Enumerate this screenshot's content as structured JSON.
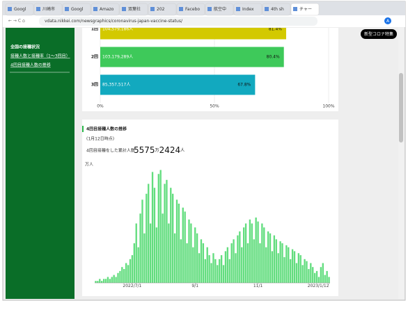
{
  "browser": {
    "tabs": [
      "Googl",
      "川崎市",
      "Googl",
      "Amazo",
      "双葉社",
      "202",
      "Facebo",
      "航空中",
      "Index",
      "4th sh",
      "チャー"
    ],
    "url": "vdata.nikkei.com/newsgraphics/coronavirus-japan-vaccine-status/",
    "profile": "A"
  },
  "sidebar": {
    "title": "全国の接種状況",
    "links": [
      "接種人数と接種率（1〜3回目）",
      "4回目接種人数の推移"
    ]
  },
  "header_button": "新型コロナ特集",
  "section": {
    "title": "4回目接種人数の推移",
    "as_of": "(1月12日時点)",
    "total_caption": "4回目接種をした累計人数",
    "total_parts": [
      "5575",
      "万",
      "2424",
      "人"
    ]
  },
  "chart_data": [
    {
      "type": "barh",
      "categories": [
        "1回",
        "2回",
        "3回"
      ],
      "values": [
        81.4,
        80.4,
        67.8
      ],
      "value_labels": [
        "81.4%",
        "80.4%",
        "67.8%"
      ],
      "count_labels": [
        "104,579,186人",
        "103,179,289人",
        "85,357,517人"
      ],
      "colors": [
        "#d3c900",
        "#3ec95a",
        "#12a9bf"
      ],
      "xlim": [
        0,
        100
      ],
      "xticks": [
        {
          "value": 0,
          "label": "0%"
        },
        {
          "value": 50,
          "label": "50%"
        },
        {
          "value": 100,
          "label": "100%"
        }
      ],
      "grid": true
    },
    {
      "type": "bar",
      "unit_label": "万人",
      "color": "#62dd7e",
      "ylim": [
        0,
        60
      ],
      "categories": [
        null,
        null,
        null,
        null,
        null,
        null,
        null,
        null,
        null,
        null,
        null,
        null,
        null,
        null,
        null,
        null,
        null,
        null,
        "2022/7/1",
        null,
        null,
        null,
        null,
        null,
        null,
        null,
        null,
        null,
        null,
        null,
        null,
        null,
        null,
        null,
        null,
        null,
        null,
        null,
        null,
        null,
        null,
        null,
        null,
        null,
        null,
        null,
        null,
        null,
        null,
        "9/1",
        null,
        null,
        null,
        null,
        null,
        null,
        null,
        null,
        null,
        null,
        null,
        null,
        null,
        null,
        null,
        null,
        null,
        null,
        null,
        null,
        null,
        null,
        null,
        null,
        null,
        null,
        null,
        null,
        null,
        null,
        "11/1",
        null,
        null,
        null,
        null,
        null,
        null,
        null,
        null,
        null,
        null,
        null,
        null,
        null,
        null,
        null,
        null,
        null,
        null,
        null,
        null,
        null,
        null,
        null,
        null,
        null,
        null,
        null,
        null,
        null,
        null,
        null,
        null,
        null,
        null,
        "2023/1/12"
      ],
      "values": [
        1,
        1,
        2,
        1,
        2,
        2,
        3,
        2,
        3,
        4,
        3,
        5,
        6,
        8,
        7,
        10,
        9,
        12,
        14,
        20,
        30,
        18,
        35,
        42,
        25,
        45,
        50,
        30,
        56,
        48,
        28,
        55,
        57,
        35,
        50,
        52,
        30,
        48,
        45,
        25,
        42,
        40,
        22,
        38,
        36,
        20,
        32,
        30,
        18,
        28,
        25,
        15,
        22,
        20,
        12,
        18,
        14,
        10,
        15,
        12,
        9,
        12,
        14,
        9,
        16,
        18,
        12,
        20,
        22,
        15,
        24,
        26,
        18,
        28,
        30,
        20,
        32,
        30,
        22,
        33,
        31,
        20,
        30,
        28,
        18,
        26,
        25,
        16,
        24,
        22,
        15,
        21,
        20,
        13,
        19,
        18,
        12,
        17,
        16,
        10,
        15,
        14,
        9,
        12,
        11,
        7,
        10,
        8,
        5,
        6,
        3,
        8,
        10,
        4,
        6,
        3
      ]
    }
  ]
}
